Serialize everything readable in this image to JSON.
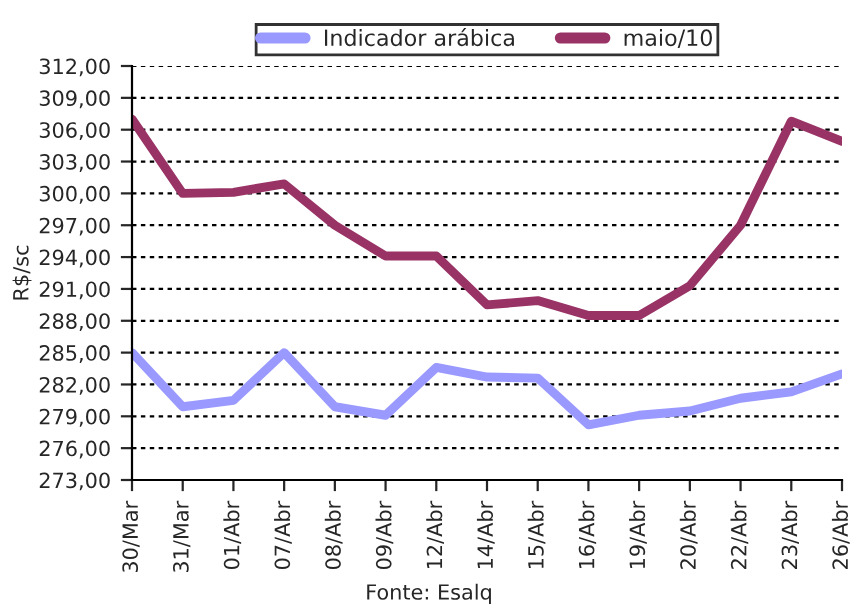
{
  "chart_data": {
    "type": "line",
    "categories": [
      "30/Mar",
      "31/Mar",
      "01/Abr",
      "07/Abr",
      "08/Abr",
      "09/Abr",
      "12/Abr",
      "14/Abr",
      "15/Abr",
      "16/Abr",
      "19/Abr",
      "20/Abr",
      "22/Abr",
      "23/Abr",
      "26/Abr"
    ],
    "series": [
      {
        "name": "Indicador arábica",
        "color": "#9999ff",
        "values": [
          285.0,
          279.9,
          280.5,
          285.0,
          279.9,
          279.1,
          283.6,
          282.7,
          282.6,
          278.2,
          279.1,
          279.5,
          280.7,
          281.3,
          283.0
        ]
      },
      {
        "name": "maio/10",
        "color": "#993366",
        "values": [
          307.0,
          300.0,
          300.1,
          300.9,
          297.0,
          294.1,
          294.1,
          289.5,
          289.9,
          288.5,
          288.5,
          291.3,
          297.0,
          306.8,
          304.9
        ]
      }
    ],
    "ylabel": "R$/sc",
    "ylim": [
      273,
      312
    ],
    "yticks": [
      {
        "value": 273,
        "label": "273,00"
      },
      {
        "value": 276,
        "label": "276,00"
      },
      {
        "value": 279,
        "label": "279,00"
      },
      {
        "value": 282,
        "label": "282,00"
      },
      {
        "value": 285,
        "label": "285,00"
      },
      {
        "value": 288,
        "label": "288,00"
      },
      {
        "value": 291,
        "label": "291,00"
      },
      {
        "value": 294,
        "label": "294,00"
      },
      {
        "value": 297,
        "label": "297,00"
      },
      {
        "value": 300,
        "label": "300,00"
      },
      {
        "value": 303,
        "label": "303,00"
      },
      {
        "value": 306,
        "label": "306,00"
      },
      {
        "value": 309,
        "label": "309,00"
      },
      {
        "value": 312,
        "label": "312,00"
      }
    ],
    "grid": "y",
    "legend": "top",
    "marker": "none",
    "line_style": "solid",
    "annotations": [
      "Fonte: Esalq"
    ]
  }
}
